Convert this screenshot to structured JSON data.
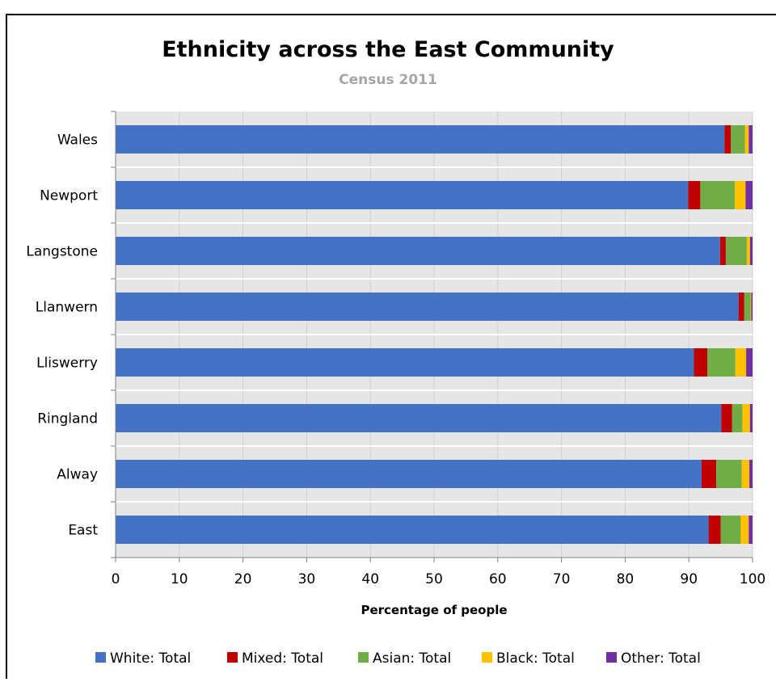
{
  "chart_data": {
    "type": "bar",
    "orientation": "horizontal",
    "stacked": true,
    "title": "Ethnicity across the East Community",
    "subtitle": "Census 2011",
    "xlabel": "Percentage of people",
    "ylabel": "",
    "xlim": [
      0,
      100
    ],
    "xticks": [
      0,
      10,
      20,
      30,
      40,
      50,
      60,
      70,
      80,
      90,
      100
    ],
    "grid": true,
    "legend_position": "bottom",
    "categories": [
      "Wales",
      "Newport",
      "Langstone",
      "Llanwern",
      "Lliswerry",
      "Ringland",
      "Alway",
      "East"
    ],
    "series": [
      {
        "name": "White: Total",
        "color": "#4472c4",
        "values": [
          95.6,
          89.9,
          94.9,
          97.8,
          90.8,
          95.1,
          92.0,
          93.1
        ]
      },
      {
        "name": "Mixed: Total",
        "color": "#c00000",
        "values": [
          1.0,
          1.9,
          0.9,
          0.9,
          2.1,
          1.7,
          2.3,
          1.9
        ]
      },
      {
        "name": "Asian: Total",
        "color": "#70ad47",
        "values": [
          2.2,
          5.4,
          3.3,
          1.0,
          4.4,
          1.6,
          4.0,
          3.1
        ]
      },
      {
        "name": "Black: Total",
        "color": "#ffc000",
        "values": [
          0.6,
          1.7,
          0.5,
          0.1,
          1.7,
          1.2,
          1.2,
          1.3
        ]
      },
      {
        "name": "Other: Total",
        "color": "#7030a0",
        "values": [
          0.6,
          1.1,
          0.4,
          0.2,
          1.0,
          0.4,
          0.5,
          0.6
        ]
      }
    ]
  }
}
